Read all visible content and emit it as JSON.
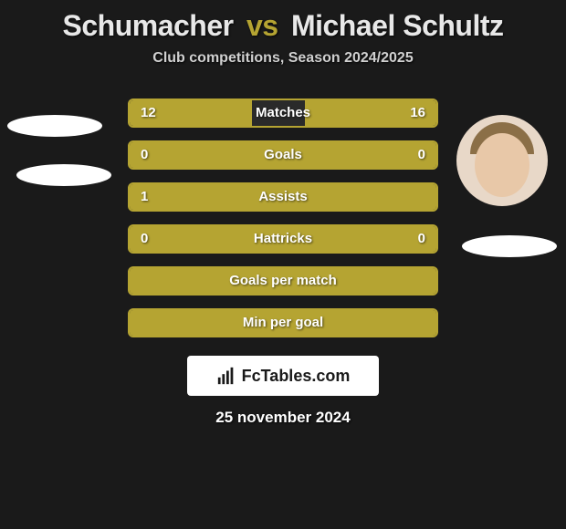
{
  "header": {
    "player1": "Schumacher",
    "vs_text": "vs",
    "player2": "Michael Schultz",
    "subtitle": "Club competitions, Season 2024/2025"
  },
  "stats": [
    {
      "label": "Matches",
      "value_left": "12",
      "value_right": "16",
      "fill_left_pct": 40,
      "fill_right_pct": 43,
      "show_values": true
    },
    {
      "label": "Goals",
      "value_left": "0",
      "value_right": "0",
      "fill_left_pct": 0,
      "fill_right_pct": 0,
      "show_values": true,
      "full_fill": true
    },
    {
      "label": "Assists",
      "value_left": "1",
      "value_right": "",
      "fill_left_pct": 0,
      "fill_right_pct": 0,
      "show_values": true,
      "show_right_value": false,
      "full_fill": true
    },
    {
      "label": "Hattricks",
      "value_left": "0",
      "value_right": "0",
      "fill_left_pct": 0,
      "fill_right_pct": 0,
      "show_values": true,
      "full_fill": true
    },
    {
      "label": "Goals per match",
      "value_left": "",
      "value_right": "",
      "fill_left_pct": 0,
      "fill_right_pct": 0,
      "show_values": false,
      "full_fill": true
    },
    {
      "label": "Min per goal",
      "value_left": "",
      "value_right": "",
      "fill_left_pct": 0,
      "fill_right_pct": 0,
      "show_values": false,
      "full_fill": true
    }
  ],
  "footer": {
    "logo_text": "FcTables.com",
    "date": "25 november 2024"
  },
  "colors": {
    "background": "#1a1a1a",
    "bar_fill": "#b5a432",
    "bar_border": "#b5a432",
    "text": "#ffffff",
    "oval": "#ffffff"
  }
}
